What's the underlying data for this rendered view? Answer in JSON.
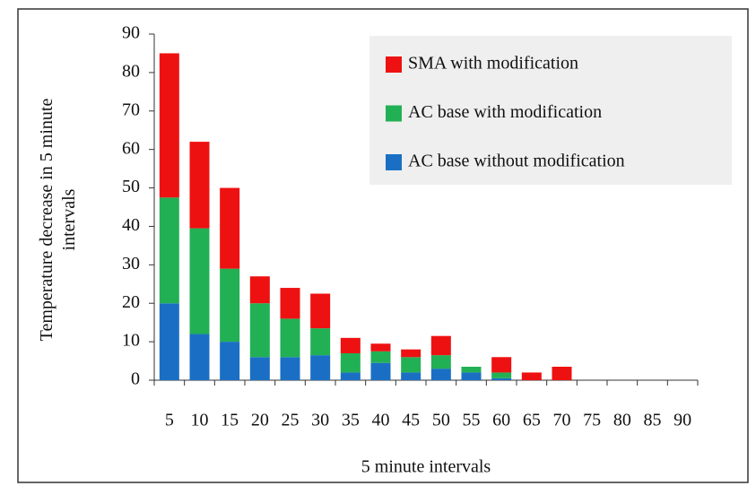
{
  "chart_data": {
    "type": "stacked_bar",
    "xlabel": "5 minute intervals",
    "ylabel": "Temperature decrease in 5 minute intervals",
    "categories": [
      "5",
      "10",
      "15",
      "20",
      "25",
      "30",
      "35",
      "40",
      "45",
      "50",
      "55",
      "60",
      "65",
      "70",
      "75",
      "80",
      "85",
      "90"
    ],
    "series": [
      {
        "name": "AC base without modification",
        "color": "#1a6fc4",
        "values": [
          20,
          12,
          10,
          6,
          6,
          6.5,
          2,
          4.5,
          2,
          3,
          2,
          0.5,
          0,
          0,
          0,
          0,
          0,
          0
        ]
      },
      {
        "name": "AC base with modification",
        "color": "#22b055",
        "values": [
          27.5,
          27.5,
          19,
          14,
          10,
          7,
          5,
          3,
          4,
          3.5,
          1.5,
          1.5,
          0,
          0,
          0,
          0,
          0,
          0
        ]
      },
      {
        "name": "SMA with modification",
        "color": "#ee1111",
        "values": [
          37.5,
          22.5,
          21,
          7,
          8,
          9,
          4,
          2,
          2,
          5,
          0,
          4,
          2,
          3.5,
          0,
          0,
          0,
          0
        ]
      }
    ],
    "ylim": [
      0,
      90
    ],
    "yticks": [
      0,
      10,
      20,
      30,
      40,
      50,
      60,
      70,
      80,
      90
    ],
    "legend": "top-right"
  }
}
